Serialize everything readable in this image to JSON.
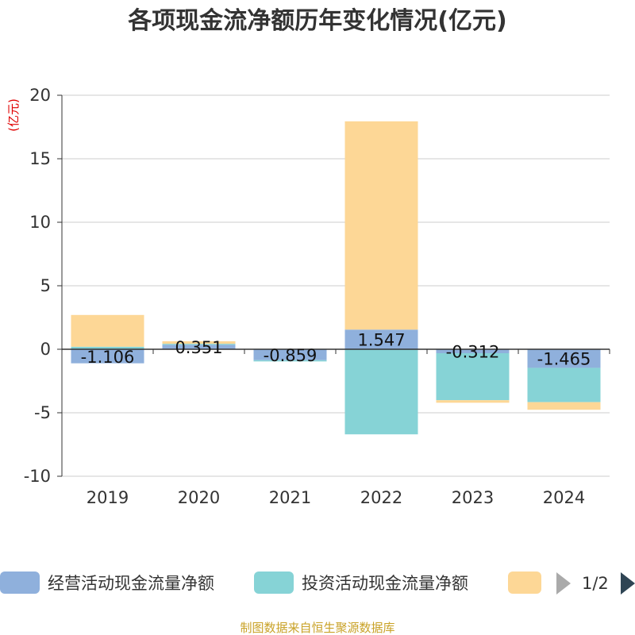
{
  "title": "各项现金流净额历年变化情况(亿元)",
  "source": "制图数据来自恒生聚源数据库",
  "pager": {
    "label": "1/2",
    "prev_icon": "triangle-left-icon",
    "next_icon": "triangle-right-icon"
  },
  "colors": {
    "s1": "#8fb0dc",
    "s2": "#86d3d6",
    "s3": "#fdd796",
    "grid": "#cccccc",
    "axis": "#333333"
  },
  "chart_data": {
    "type": "bar",
    "stacked": true,
    "categories": [
      "2019",
      "2020",
      "2021",
      "2022",
      "2023",
      "2024"
    ],
    "ylabel": "(亿元)",
    "ylim": [
      -10,
      20
    ],
    "yticks": [
      "20",
      "15",
      "10",
      "5",
      "0",
      "-5",
      "-10"
    ],
    "grid": true,
    "legend_position": "bottom",
    "series": [
      {
        "name": "经营活动现金流量净额",
        "values": [
          -1.106,
          0.351,
          -0.859,
          1.547,
          -0.312,
          -1.465
        ],
        "labels": [
          "-1.106",
          "0.351",
          "-0.859",
          "1.547",
          "-0.312",
          "-1.465"
        ]
      },
      {
        "name": "投资活动现金流量净额",
        "values": [
          0.2,
          0.08,
          -0.1,
          -6.7,
          -3.7,
          -2.7
        ]
      },
      {
        "name": "",
        "values": [
          2.5,
          0.2,
          0,
          16.4,
          -0.2,
          -0.6
        ]
      }
    ]
  }
}
